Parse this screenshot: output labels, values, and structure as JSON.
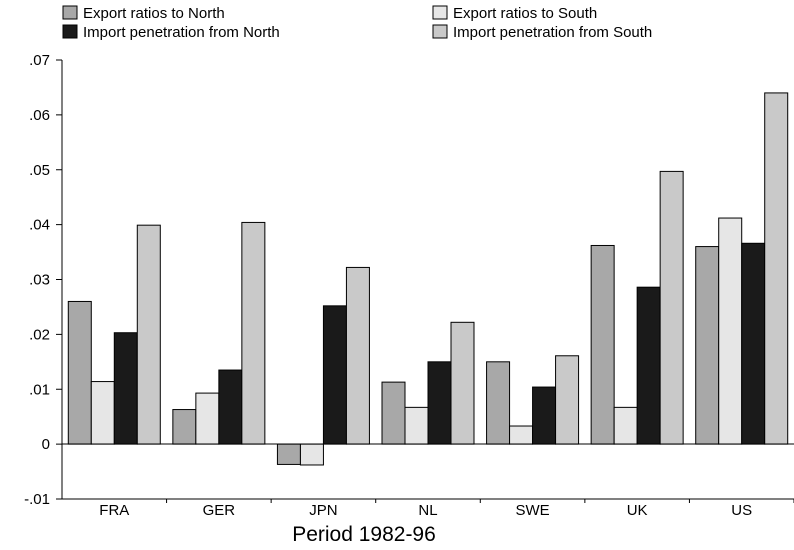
{
  "chart_data": {
    "type": "bar",
    "title": "",
    "xlabel": "Period 1982-96",
    "ylabel": "",
    "categories": [
      "FRA",
      "GER",
      "JPN",
      "NL",
      "SWE",
      "UK",
      "US"
    ],
    "ylim": [
      -0.01,
      0.07
    ],
    "yticks": [
      -0.01,
      0,
      0.01,
      0.02,
      0.03,
      0.04,
      0.05,
      0.06,
      0.07
    ],
    "ytick_labels": [
      "-.01",
      "0",
      ".01",
      ".02",
      ".03",
      ".04",
      ".05",
      ".06",
      ".07"
    ],
    "grid": false,
    "legend_position": "top",
    "series": [
      {
        "name": "Export ratios to North",
        "color": "#a8a8a8",
        "values": [
          0.026,
          0.0063,
          -0.0037,
          0.0113,
          0.015,
          0.0362,
          0.036
        ]
      },
      {
        "name": "Export ratios to South",
        "color": "#e6e6e6",
        "values": [
          0.0114,
          0.0093,
          -0.0038,
          0.0067,
          0.0033,
          0.0067,
          0.0412
        ]
      },
      {
        "name": "Import penetration from North",
        "color": "#1a1a1a",
        "values": [
          0.0203,
          0.0135,
          0.0252,
          0.015,
          0.0104,
          0.0286,
          0.0366
        ]
      },
      {
        "name": "Import penetration from South",
        "color": "#c9c9c9",
        "values": [
          0.0399,
          0.0404,
          0.0322,
          0.0222,
          0.0161,
          0.0497,
          0.064
        ]
      }
    ]
  }
}
